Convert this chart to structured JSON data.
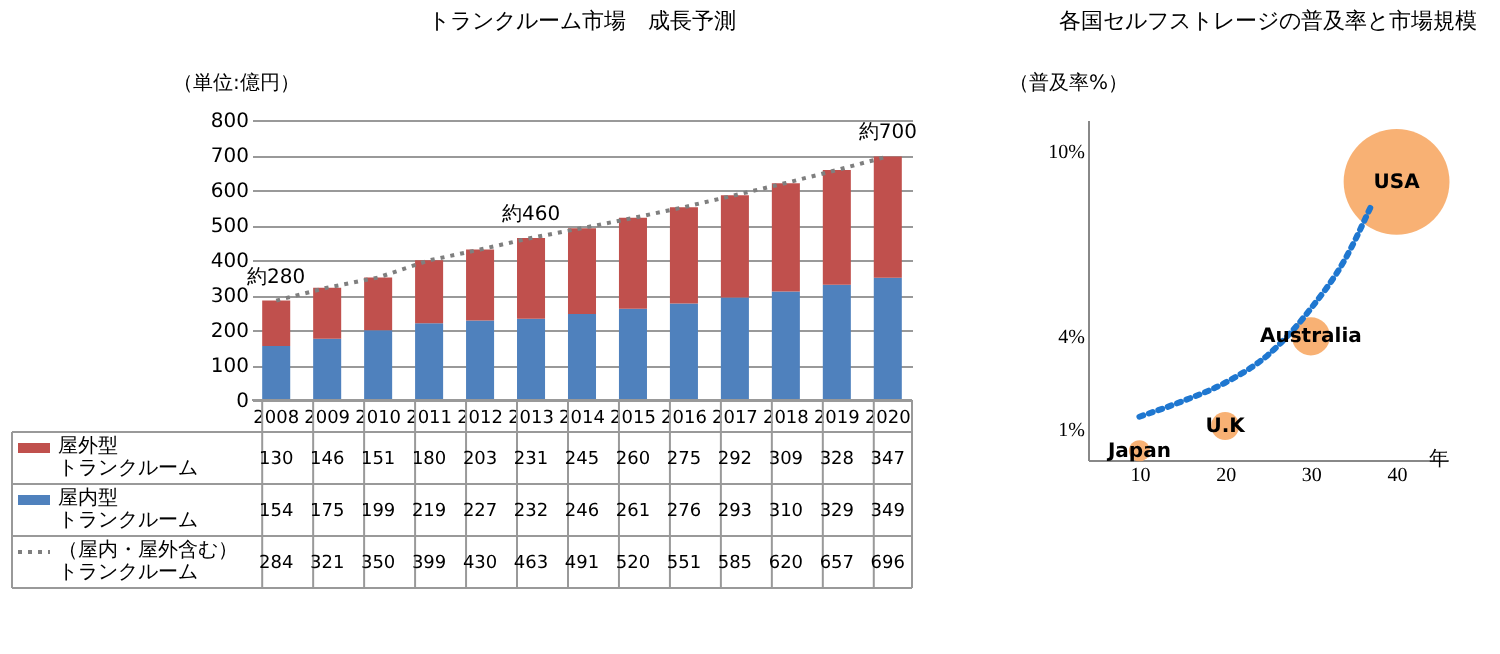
{
  "chart_data": [
    {
      "type": "bar",
      "title": "トランクルーム市場　成長予測",
      "ylabel": "（単位:億円）",
      "stacked": true,
      "categories": [
        "2008",
        "2009",
        "2010",
        "2011",
        "2012",
        "2013",
        "2014",
        "2015",
        "2016",
        "2017",
        "2018",
        "2019",
        "2020"
      ],
      "series": [
        {
          "name": "屋内型トランクルーム",
          "color": "#4f81bd",
          "values": [
            154,
            175,
            199,
            219,
            227,
            232,
            246,
            261,
            276,
            293,
            310,
            329,
            349
          ]
        },
        {
          "name": "屋外型トランクルーム",
          "color": "#c0504d",
          "values": [
            130,
            146,
            151,
            180,
            203,
            231,
            245,
            260,
            275,
            292,
            309,
            328,
            347
          ]
        },
        {
          "name": "（屋内・屋外含む）トランクルーム",
          "type": "line",
          "line_style": "dotted",
          "color": "#7f7f7f",
          "values": [
            284,
            321,
            350,
            399,
            430,
            463,
            491,
            520,
            551,
            585,
            620,
            657,
            696
          ]
        }
      ],
      "ylim": [
        0,
        800
      ],
      "yticks": [
        0,
        100,
        200,
        300,
        400,
        500,
        600,
        700,
        800
      ],
      "grid": "y",
      "data_labels": true,
      "legend": "bottom",
      "annotations": [
        {
          "text": "約280",
          "x": "2008",
          "y": 284
        },
        {
          "text": "約460",
          "x": "2013",
          "y": 463
        },
        {
          "text": "約700",
          "x": "2020",
          "y": 696
        }
      ]
    },
    {
      "type": "bubble",
      "title": "各国セルフストレージの普及率と市場規模",
      "ylabel": "（普及率%）",
      "xlabel": "年",
      "x": [
        10,
        20,
        30,
        40
      ],
      "series": [
        {
          "color": "#f7a35c",
          "values": [
            0.3,
            1.1,
            4,
            9
          ],
          "sizes": [
            0.04,
            0.07,
            0.13,
            1
          ]
        },
        {
          "type": "line",
          "line_style": "dotted",
          "color": "#1f77d0",
          "x": [
            10,
            15,
            20,
            25,
            30,
            34,
            37
          ],
          "values": [
            1.4,
            1.9,
            2.5,
            3.4,
            4.9,
            6.5,
            8.2
          ]
        }
      ],
      "xlim": [
        4,
        46
      ],
      "xticks": [
        10,
        20,
        30,
        40
      ],
      "ylim": [
        0,
        11
      ],
      "yticks": [
        {
          "value": 1,
          "label": "1%"
        },
        {
          "value": 4,
          "label": "4%"
        },
        {
          "value": 10,
          "label": "10%"
        }
      ],
      "grid": false,
      "annotations": [
        {
          "text": "Japan",
          "x": 10,
          "y": 0.3
        },
        {
          "text": "U.K",
          "x": 20,
          "y": 1.1
        },
        {
          "text": "Australia",
          "x": 30,
          "y": 4
        },
        {
          "text": "USA",
          "x": 40,
          "y": 9
        }
      ]
    }
  ]
}
